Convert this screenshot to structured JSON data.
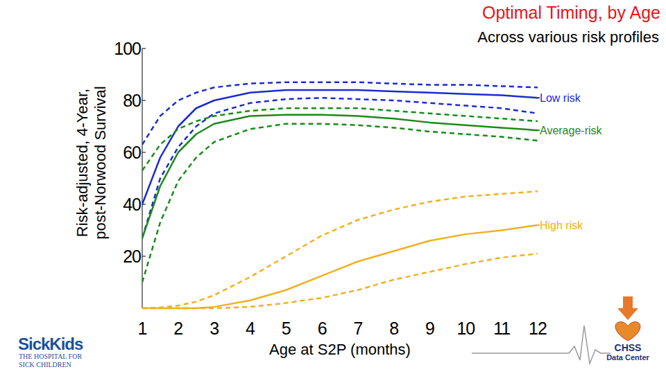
{
  "chart_data": {
    "type": "line",
    "title": "Optimal Timing, by Age",
    "subtitle": "Across various risk profiles",
    "y_label": [
      "Risk-adjusted, 4-Year,",
      "post-Norwood Survival"
    ],
    "x_label": "Age at S2P (months)",
    "x": [
      1,
      1.5,
      2,
      2.5,
      3,
      4,
      5,
      6,
      7,
      8,
      9,
      10,
      11,
      12
    ],
    "xlim": [
      1,
      12
    ],
    "xticks": [
      1,
      2,
      3,
      4,
      5,
      6,
      7,
      8,
      9,
      10,
      11,
      12
    ],
    "ylim": [
      0,
      100
    ],
    "yticks": [
      20,
      40,
      60,
      80,
      100
    ],
    "grid": false,
    "series": [
      {
        "name": "Low risk",
        "color": "#1a2ccc",
        "line_style": "solid",
        "values": [
          40,
          58,
          70,
          77,
          80,
          83,
          84,
          84,
          84,
          83.5,
          83,
          82.5,
          82,
          81
        ],
        "upper": [
          63,
          74,
          80,
          83,
          85,
          86.5,
          87,
          87,
          87,
          86.5,
          86,
          86,
          85.5,
          85
        ],
        "lower": [
          27,
          50,
          62,
          70,
          75,
          79,
          80.5,
          81,
          80.5,
          80,
          79,
          78,
          77,
          75
        ]
      },
      {
        "name": "Average-risk",
        "color": "#1a8a1a",
        "line_style": "solid",
        "values": [
          27,
          47,
          60,
          67,
          71,
          74,
          74.5,
          74.5,
          74,
          73,
          71.5,
          70.5,
          69.5,
          68.5
        ],
        "upper": [
          53,
          63,
          69,
          72,
          74,
          76,
          77,
          77,
          77,
          76,
          75,
          74,
          73,
          72
        ],
        "lower": [
          10,
          33,
          49,
          58,
          64,
          69,
          71,
          71,
          70.5,
          69.5,
          68,
          67,
          66,
          64.5
        ]
      },
      {
        "name": "High risk",
        "color": "#f0b020",
        "line_style": "solid",
        "values": [
          0,
          0,
          0,
          0,
          0.5,
          3,
          7,
          12.5,
          18,
          22,
          26,
          28.5,
          30,
          32
        ],
        "upper": [
          0,
          0.3,
          1,
          2.5,
          5,
          12,
          20,
          28,
          34,
          38,
          41,
          43,
          44,
          45
        ],
        "lower": [
          0,
          0,
          0,
          0,
          0,
          0.5,
          2,
          4,
          7,
          11,
          14,
          17,
          19.5,
          21
        ]
      }
    ],
    "annotations": [
      "SickKids",
      "THE HOSPITAL FOR",
      "SICK CHILDREN",
      "CHSS",
      "Data Center"
    ]
  }
}
